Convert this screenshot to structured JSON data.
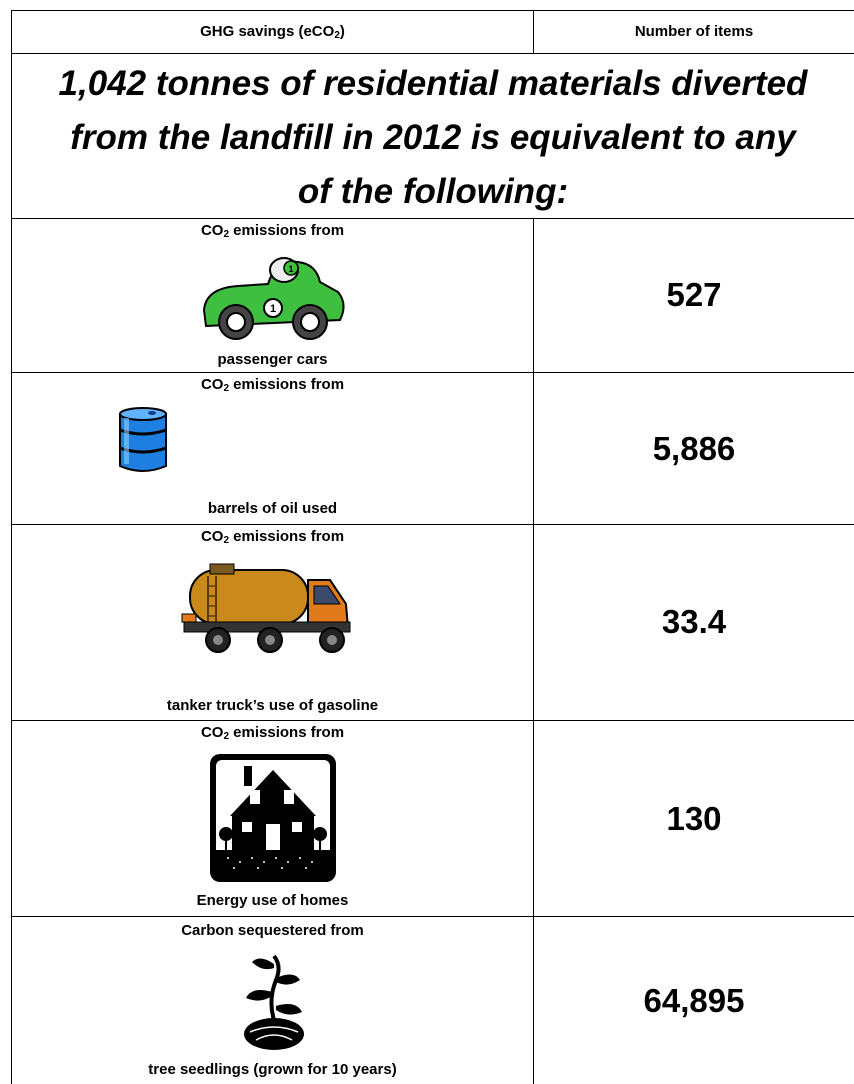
{
  "header": {
    "col1_main": "GHG savings (eCO",
    "col1_sub": "2",
    "col1_end": ")",
    "col2": "Number of items"
  },
  "title": {
    "line1": "1,042 tonnes of residential materials diverted",
    "line2": "from the landfill in 2012 is equivalent to any",
    "line3": "of the following:"
  },
  "rows": [
    {
      "top_main": "CO",
      "top_sub": "2",
      "top_end": " emissions from",
      "bottom": "passenger cars",
      "value": "527",
      "icon": "race-car-icon"
    },
    {
      "top_main": "CO",
      "top_sub": "2",
      "top_end": " emissions from",
      "bottom": "barrels of oil used",
      "value": "5,886",
      "icon": "oil-barrel-icon"
    },
    {
      "top_main": "CO",
      "top_sub": "2",
      "top_end": " emissions from",
      "bottom": "tanker truck’s use of gasoline",
      "value": "33.4",
      "icon": "tanker-truck-icon"
    },
    {
      "top_main": "CO",
      "top_sub": "2",
      "top_end": " emissions from",
      "bottom": "Energy use of homes",
      "value": "130",
      "icon": "house-icon"
    },
    {
      "top_full": "Carbon sequestered from",
      "bottom": "tree seedlings (grown for 10 years)",
      "value": "64,895",
      "icon": "seedling-icon"
    }
  ]
}
